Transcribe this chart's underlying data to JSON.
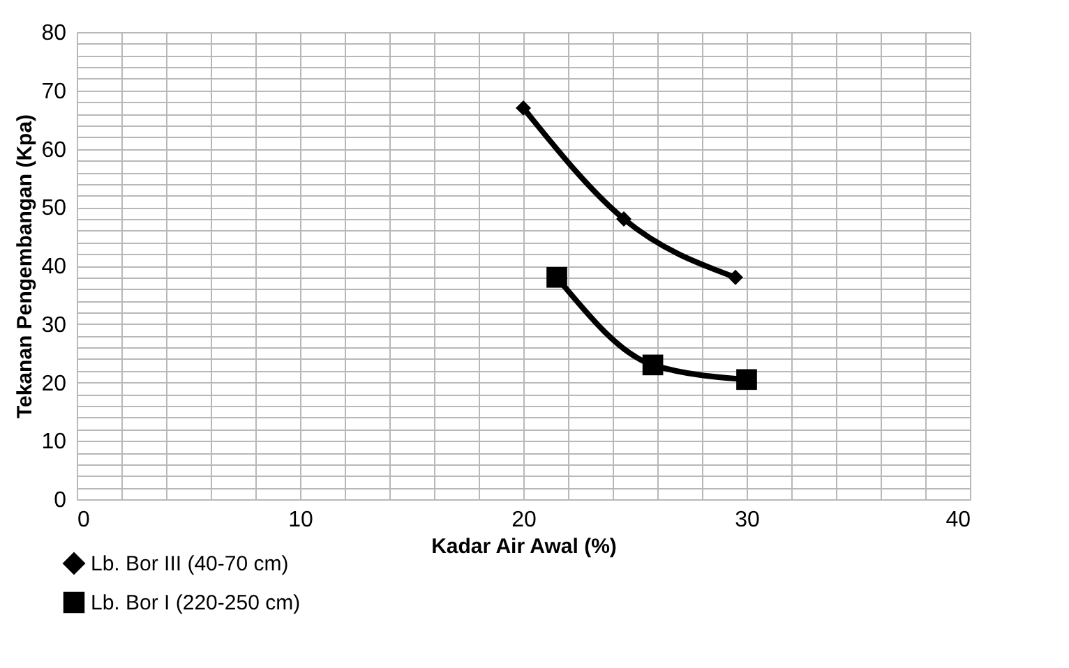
{
  "chart_data": {
    "type": "line",
    "xlabel": "Kadar Air Awal (%)",
    "ylabel": "Tekanan Pengembangan (Kpa)",
    "series": [
      {
        "name": "Lb. Bor III (40-70 cm)",
        "color": "#000000",
        "marker": "diamond",
        "x": [
          20,
          24.5,
          29.5
        ],
        "values": [
          67,
          48,
          38
        ]
      },
      {
        "name": "Lb. Bor I (220-250 cm)",
        "color": "#000000",
        "marker": "square",
        "x": [
          21.5,
          25.8,
          30
        ],
        "values": [
          38,
          23,
          20.5
        ]
      }
    ],
    "xlim": [
      0,
      40
    ],
    "ylim": [
      0,
      80
    ],
    "xticks": [
      0,
      {
        "value": 2,
        "label": null
      },
      {
        "value": 4,
        "label": null
      },
      {
        "value": 6,
        "label": null
      },
      {
        "value": 8,
        "label": null
      },
      10,
      {
        "value": 12,
        "label": null
      },
      {
        "value": 14,
        "label": null
      },
      {
        "value": 16,
        "label": null
      },
      {
        "value": 18,
        "label": null
      },
      20,
      {
        "value": 22,
        "label": null
      },
      {
        "value": 24,
        "label": null
      },
      {
        "value": 26,
        "label": null
      },
      {
        "value": 28,
        "label": null
      },
      30,
      {
        "value": 32,
        "label": null
      },
      {
        "value": 34,
        "label": null
      },
      {
        "value": 36,
        "label": null
      },
      {
        "value": 38,
        "label": null
      },
      40
    ],
    "yticks": [
      0,
      {
        "value": 2,
        "label": null
      },
      {
        "value": 4,
        "label": null
      },
      {
        "value": 6,
        "label": null
      },
      {
        "value": 8,
        "label": null
      },
      10,
      {
        "value": 12,
        "label": null
      },
      {
        "value": 14,
        "label": null
      },
      {
        "value": 16,
        "label": null
      },
      {
        "value": 18,
        "label": null
      },
      20,
      {
        "value": 22,
        "label": null
      },
      {
        "value": 24,
        "label": null
      },
      {
        "value": 26,
        "label": null
      },
      {
        "value": 28,
        "label": null
      },
      30,
      {
        "value": 32,
        "label": null
      },
      {
        "value": 34,
        "label": null
      },
      {
        "value": 36,
        "label": null
      },
      {
        "value": 38,
        "label": null
      },
      40,
      {
        "value": 42,
        "label": null
      },
      {
        "value": 44,
        "label": null
      },
      {
        "value": 46,
        "label": null
      },
      {
        "value": 48,
        "label": null
      },
      50,
      {
        "value": 52,
        "label": null
      },
      {
        "value": 54,
        "label": null
      },
      {
        "value": 56,
        "label": null
      },
      {
        "value": 58,
        "label": null
      },
      60,
      {
        "value": 62,
        "label": null
      },
      {
        "value": 64,
        "label": null
      },
      {
        "value": 66,
        "label": null
      },
      {
        "value": 68,
        "label": null
      },
      70,
      {
        "value": 72,
        "label": null
      },
      {
        "value": 74,
        "label": null
      },
      {
        "value": 76,
        "label": null
      },
      {
        "value": 78,
        "label": null
      },
      80
    ],
    "grid": true,
    "legend": "bottom left",
    "line_style": "solid"
  }
}
